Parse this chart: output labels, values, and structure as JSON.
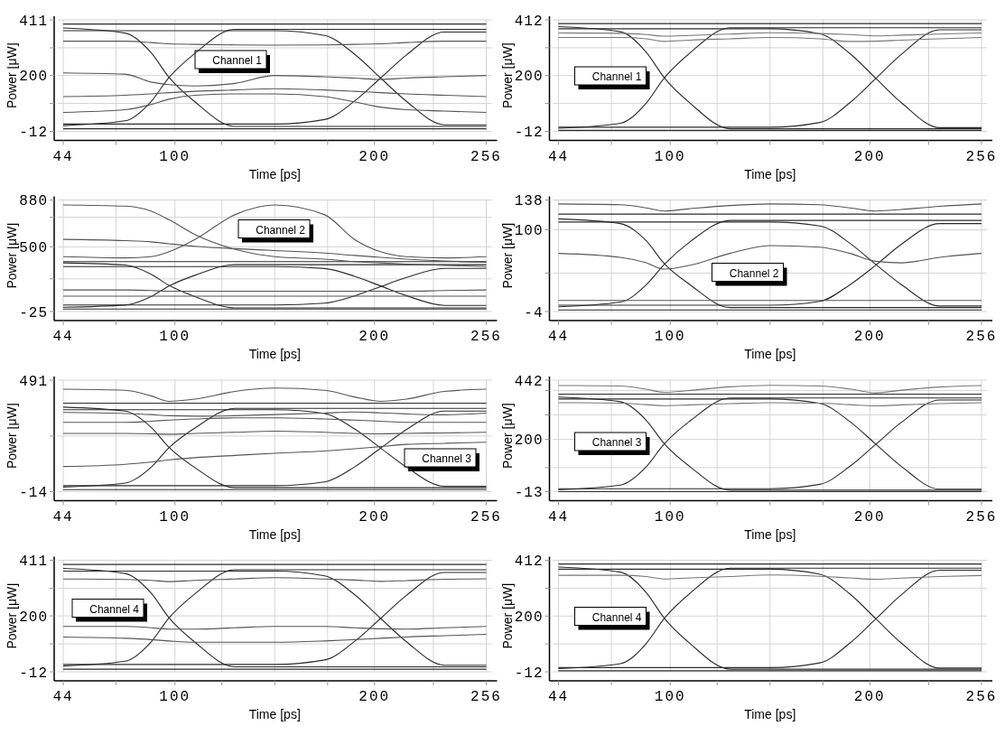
{
  "chart_data": [
    {
      "type": "line",
      "xlabel": "Time [ps]",
      "ylabel": "Power [μW]",
      "annotations": [
        "Channel 1"
      ],
      "grid": true,
      "x": [
        44,
        75,
        88,
        97,
        110,
        130,
        150,
        175,
        190,
        203,
        216,
        235,
        256
      ],
      "xlim": [
        44,
        256
      ],
      "xticks": [
        44,
        {
          "value": 70.5,
          "label": null
        },
        100,
        {
          "value": 123.5,
          "label": null
        },
        {
          "value": 150,
          "label": null
        },
        {
          "value": 176.5,
          "label": null
        },
        200,
        {
          "value": 229.5,
          "label": null
        },
        256
      ],
      "ylim": [
        -12,
        411
      ],
      "yticks": [
        -12,
        {
          "value": 94,
          "label": null
        },
        200,
        {
          "value": 305,
          "label": null
        },
        411
      ],
      "series": [
        {
          "color": "#2b2b2b",
          "values": [
            395,
            395,
            395,
            395,
            395,
            395,
            395,
            395,
            395,
            395,
            395,
            395,
            395
          ]
        },
        {
          "color": "#2b2b2b",
          "values": [
            -2,
            -2,
            -2,
            -2,
            -2,
            -2,
            -2,
            -2,
            -2,
            -2,
            -2,
            -2,
            -2
          ]
        },
        {
          "color": "#2b2b2b",
          "values": [
            380,
            361,
            287,
            193,
            100,
            7,
            7,
            7,
            7,
            7,
            7,
            7,
            7
          ]
        },
        {
          "color": "#2b2b2b",
          "values": [
            10,
            28,
            101,
            192,
            284,
            375,
            375,
            375,
            375,
            375,
            375,
            375,
            375
          ]
        },
        {
          "color": "#2b2b2b",
          "values": [
            370,
            370,
            370,
            370,
            370,
            370,
            370,
            352,
            281,
            191,
            102,
            13,
            13
          ]
        },
        {
          "color": "#2b2b2b",
          "values": [
            16,
            16,
            16,
            16,
            16,
            16,
            16,
            33,
            103,
            190,
            278,
            365,
            365
          ]
        },
        {
          "color": "#555555",
          "values": [
            330,
            330,
            325,
            320,
            318,
            316,
            315,
            316,
            318,
            320,
            325,
            330,
            330
          ]
        },
        {
          "color": "#555555",
          "values": [
            120,
            125,
            130,
            135,
            140,
            145,
            150,
            145,
            140,
            135,
            130,
            125,
            120
          ]
        },
        {
          "color": "#555555",
          "values": [
            210,
            205,
            175,
            165,
            160,
            170,
            200,
            195,
            190,
            185,
            190,
            195,
            200
          ]
        },
        {
          "color": "#555555",
          "values": [
            60,
            70,
            90,
            110,
            125,
            130,
            130,
            120,
            100,
            80,
            70,
            65,
            60
          ]
        }
      ]
    },
    {
      "type": "line",
      "xlabel": "Time [ps]",
      "ylabel": "Power [μW]",
      "annotations": [
        "Channel 1"
      ],
      "grid": true,
      "x": [
        44,
        75,
        88,
        97,
        110,
        130,
        150,
        175,
        190,
        203,
        216,
        235,
        256
      ],
      "xlim": [
        44,
        256
      ],
      "xticks": [
        44,
        {
          "value": 70.5,
          "label": null
        },
        100,
        {
          "value": 123.5,
          "label": null
        },
        {
          "value": 150,
          "label": null
        },
        {
          "value": 176.5,
          "label": null
        },
        200,
        {
          "value": 229.5,
          "label": null
        },
        256
      ],
      "ylim": [
        -12,
        412
      ],
      "yticks": [
        -12,
        {
          "value": 94,
          "label": null
        },
        200,
        {
          "value": 306,
          "label": null
        },
        412
      ],
      "series": [
        {
          "color": "#2b2b2b",
          "values": [
            398,
            398,
            398,
            398,
            398,
            398,
            398,
            398,
            398,
            398,
            398,
            398,
            398
          ]
        },
        {
          "color": "#2b2b2b",
          "values": [
            -8,
            -8,
            -8,
            -8,
            -8,
            -8,
            -8,
            -8,
            -8,
            -8,
            -8,
            -8,
            -8
          ]
        },
        {
          "color": "#2b2b2b",
          "values": [
            386,
            367,
            289,
            192,
            95,
            -2,
            -2,
            -2,
            -2,
            -2,
            -2,
            -2,
            -2
          ]
        },
        {
          "color": "#2b2b2b",
          "values": [
            0,
            19,
            96,
            191,
            287,
            382,
            382,
            382,
            382,
            382,
            382,
            382,
            382
          ]
        },
        {
          "color": "#2b2b2b",
          "values": [
            378,
            378,
            378,
            378,
            378,
            378,
            378,
            359,
            284,
            190,
            96,
            2,
            2
          ]
        },
        {
          "color": "#2b2b2b",
          "values": [
            4,
            4,
            4,
            4,
            4,
            4,
            4,
            22,
            97,
            189,
            282,
            374,
            374
          ]
        },
        {
          "color": "#777777",
          "values": [
            345,
            345,
            340,
            330,
            335,
            340,
            345,
            340,
            330,
            331,
            335,
            340,
            345
          ]
        },
        {
          "color": "#777777",
          "values": [
            362,
            361,
            356,
            350,
            353,
            358,
            363,
            360,
            356,
            351,
            354,
            358,
            362
          ]
        }
      ]
    },
    {
      "type": "line",
      "xlabel": "Time [ps]",
      "ylabel": "Power [μW]",
      "annotations": [
        "Channel 2"
      ],
      "grid": true,
      "x": [
        44,
        75,
        88,
        97,
        110,
        130,
        150,
        175,
        190,
        203,
        216,
        235,
        256
      ],
      "xlim": [
        44,
        256
      ],
      "xticks": [
        44,
        {
          "value": 70.5,
          "label": null
        },
        100,
        {
          "value": 123.5,
          "label": null
        },
        {
          "value": 150,
          "label": null
        },
        {
          "value": 176.5,
          "label": null
        },
        200,
        {
          "value": 229.5,
          "label": null
        },
        256
      ],
      "ylim": [
        -25,
        880
      ],
      "yticks": [
        -25,
        {
          "value": 240,
          "label": null
        },
        500,
        {
          "value": 740,
          "label": null
        },
        880
      ],
      "series": [
        {
          "color": "#2b2b2b",
          "values": [
            380,
            380,
            380,
            380,
            380,
            380,
            380,
            380,
            380,
            380,
            380,
            380,
            380
          ]
        },
        {
          "color": "#2b2b2b",
          "values": [
            -5,
            -5,
            -5,
            -5,
            -5,
            -5,
            -5,
            -5,
            -5,
            -5,
            -5,
            -5,
            -5
          ]
        },
        {
          "color": "#2b2b2b",
          "values": [
            370,
            352,
            278,
            187,
            96,
            4,
            4,
            4,
            4,
            4,
            4,
            4,
            4
          ]
        },
        {
          "color": "#2b2b2b",
          "values": [
            10,
            27,
            96,
            182,
            269,
            355,
            355,
            355,
            355,
            355,
            355,
            355,
            355
          ]
        },
        {
          "color": "#2b2b2b",
          "values": [
            340,
            340,
            340,
            340,
            340,
            340,
            340,
            324,
            261,
            183,
            104,
            25,
            25
          ]
        },
        {
          "color": "#2b2b2b",
          "values": [
            28,
            28,
            28,
            28,
            28,
            28,
            28,
            43,
            102,
            177,
            251,
            325,
            325
          ]
        },
        {
          "color": "#555555",
          "values": [
            840,
            830,
            790,
            720,
            600,
            480,
            420,
            400,
            380,
            370,
            360,
            350,
            340
          ]
        },
        {
          "color": "#555555",
          "values": [
            420,
            410,
            420,
            460,
            560,
            760,
            840,
            760,
            560,
            460,
            420,
            410,
            420
          ]
        },
        {
          "color": "#555555",
          "values": [
            560,
            550,
            540,
            525,
            505,
            485,
            470,
            450,
            430,
            415,
            400,
            385,
            375
          ]
        },
        {
          "color": "#555555",
          "values": [
            150,
            150,
            145,
            140,
            140,
            140,
            140,
            140,
            140,
            140,
            140,
            145,
            150
          ]
        },
        {
          "color": "#555555",
          "values": [
            100,
            100,
            100,
            100,
            100,
            100,
            100,
            100,
            100,
            100,
            100,
            100,
            100
          ]
        }
      ]
    },
    {
      "type": "line",
      "xlabel": "Time [ps]",
      "ylabel": "Power [μW]",
      "annotations": [
        "Channel 2"
      ],
      "grid": true,
      "x": [
        44,
        75,
        88,
        97,
        110,
        130,
        150,
        175,
        190,
        203,
        216,
        235,
        256
      ],
      "xlim": [
        44,
        256
      ],
      "xticks": [
        44,
        {
          "value": 70.5,
          "label": null
        },
        100,
        {
          "value": 123.5,
          "label": null
        },
        {
          "value": 150,
          "label": null
        },
        {
          "value": 176.5,
          "label": null
        },
        200,
        {
          "value": 229.5,
          "label": null
        },
        256
      ],
      "ylim": [
        -4,
        138
      ],
      "yticks": [
        -4,
        {
          "value": 45,
          "label": null
        },
        100,
        138
      ],
      "series": [
        {
          "color": "#2b2b2b",
          "values": [
            120,
            120,
            120,
            120,
            120,
            120,
            120,
            120,
            120,
            120,
            120,
            120,
            120
          ]
        },
        {
          "color": "#2b2b2b",
          "values": [
            -2,
            -2,
            -2,
            -2,
            -2,
            -2,
            -2,
            -2,
            -2,
            -2,
            -2,
            -2,
            -2
          ]
        },
        {
          "color": "#2b2b2b",
          "values": [
            114,
            108,
            86,
            57,
            30,
            1,
            1,
            1,
            1,
            1,
            1,
            1,
            1
          ]
        },
        {
          "color": "#2b2b2b",
          "values": [
            2,
            8,
            30,
            56,
            85,
            112,
            112,
            112,
            112,
            112,
            112,
            112,
            112
          ]
        },
        {
          "color": "#2b2b2b",
          "values": [
            110,
            110,
            110,
            110,
            110,
            110,
            110,
            105,
            83,
            56,
            30,
            3,
            3
          ]
        },
        {
          "color": "#2b2b2b",
          "values": [
            4,
            4,
            4,
            4,
            4,
            4,
            4,
            9,
            30,
            55,
            82,
            108,
            108
          ]
        },
        {
          "color": "#555555",
          "values": [
            70,
            65,
            58,
            50,
            55,
            70,
            80,
            78,
            70,
            60,
            58,
            65,
            70
          ]
        },
        {
          "color": "#555555",
          "values": [
            10,
            10,
            10,
            10,
            10,
            10,
            10,
            10,
            10,
            10,
            10,
            10,
            10
          ]
        },
        {
          "color": "#555555",
          "values": [
            133,
            132,
            128,
            124,
            127,
            131,
            133,
            132,
            128,
            124,
            126,
            130,
            133
          ]
        }
      ]
    },
    {
      "type": "line",
      "xlabel": "Time [ps]",
      "ylabel": "Power [μW]",
      "annotations": [
        "Channel 3"
      ],
      "grid": true,
      "x": [
        44,
        75,
        88,
        97,
        110,
        130,
        150,
        175,
        190,
        203,
        216,
        235,
        256
      ],
      "xlim": [
        44,
        256
      ],
      "xticks": [
        44,
        {
          "value": 70.5,
          "label": null
        },
        100,
        {
          "value": 123.5,
          "label": null
        },
        {
          "value": 150,
          "label": null
        },
        {
          "value": 176.5,
          "label": null
        },
        200,
        {
          "value": 229.5,
          "label": null
        },
        256
      ],
      "ylim": [
        -14,
        491
      ],
      "yticks": [
        -14,
        {
          "value": 238,
          "label": null
        },
        491
      ],
      "series": [
        {
          "color": "#2b2b2b",
          "values": [
            387,
            387,
            387,
            387,
            387,
            387,
            387,
            387,
            387,
            387,
            387,
            387,
            387
          ]
        },
        {
          "color": "#2b2b2b",
          "values": [
            -5,
            -5,
            -5,
            -5,
            -5,
            -5,
            -5,
            -5,
            -5,
            -5,
            -5,
            -5,
            -5
          ]
        },
        {
          "color": "#2b2b2b",
          "values": [
            369,
            351,
            278,
            187,
            95,
            4,
            4,
            4,
            4,
            4,
            4,
            4,
            4
          ]
        },
        {
          "color": "#2b2b2b",
          "values": [
            7,
            25,
            96,
            185,
            274,
            363,
            363,
            363,
            363,
            363,
            363,
            363,
            363
          ]
        },
        {
          "color": "#2b2b2b",
          "values": [
            357,
            357,
            357,
            357,
            357,
            357,
            357,
            340,
            270,
            184,
            97,
            10,
            10
          ]
        },
        {
          "color": "#2b2b2b",
          "values": [
            13,
            13,
            13,
            13,
            13,
            13,
            13,
            30,
            98,
            182,
            267,
            351,
            351
          ]
        },
        {
          "color": "#555555",
          "values": [
            450,
            445,
            420,
            395,
            405,
            440,
            455,
            445,
            415,
            395,
            405,
            440,
            450
          ]
        },
        {
          "color": "#555555",
          "values": [
            300,
            300,
            305,
            310,
            315,
            320,
            320,
            315,
            310,
            305,
            300,
            300,
            300
          ]
        },
        {
          "color": "#555555",
          "values": [
            250,
            250,
            248,
            246,
            250,
            255,
            260,
            255,
            250,
            248,
            250,
            252,
            255
          ]
        },
        {
          "color": "#555555",
          "values": [
            100,
            110,
            120,
            130,
            140,
            150,
            160,
            170,
            180,
            190,
            200,
            205,
            210
          ]
        },
        {
          "color": "#555555",
          "values": [
            345,
            340,
            335,
            330,
            328,
            330,
            335,
            342,
            347,
            343,
            338,
            334,
            342
          ]
        }
      ]
    },
    {
      "type": "line",
      "xlabel": "Time [ps]",
      "ylabel": "Power [μW]",
      "annotations": [
        "Channel 3"
      ],
      "grid": true,
      "x": [
        44,
        75,
        88,
        97,
        110,
        130,
        150,
        175,
        190,
        203,
        216,
        235,
        256
      ],
      "xlim": [
        44,
        256
      ],
      "xticks": [
        44,
        {
          "value": 70.5,
          "label": null
        },
        100,
        {
          "value": 123.5,
          "label": null
        },
        {
          "value": 150,
          "label": null
        },
        {
          "value": 176.5,
          "label": null
        },
        200,
        {
          "value": 229.5,
          "label": null
        },
        256
      ],
      "ylim": [
        -13,
        442
      ],
      "yticks": [
        -13,
        {
          "value": 85,
          "label": null
        },
        200,
        {
          "value": 300,
          "label": null
        },
        {
          "value": 400,
          "label": null
        },
        442
      ],
      "series": [
        {
          "color": "#2b2b2b",
          "values": [
            385,
            385,
            385,
            385,
            385,
            385,
            385,
            385,
            385,
            385,
            385,
            385,
            385
          ]
        },
        {
          "color": "#2b2b2b",
          "values": [
            -13,
            -13,
            -13,
            -13,
            -13,
            -13,
            -13,
            -13,
            -13,
            -13,
            -13,
            -13,
            -13
          ]
        },
        {
          "color": "#2b2b2b",
          "values": [
            373,
            354,
            278,
            183,
            88,
            -7,
            -7,
            -7,
            -7,
            -7,
            -7,
            -7,
            -7
          ]
        },
        {
          "color": "#2b2b2b",
          "values": [
            -5,
            14,
            89,
            182,
            276,
            369,
            369,
            369,
            369,
            369,
            369,
            369,
            369
          ]
        },
        {
          "color": "#2b2b2b",
          "values": [
            365,
            365,
            365,
            365,
            365,
            365,
            365,
            347,
            273,
            181,
            89,
            -3,
            -3
          ]
        },
        {
          "color": "#2b2b2b",
          "values": [
            -1,
            -1,
            -1,
            -1,
            -1,
            -1,
            -1,
            17,
            90,
            180,
            271,
            361,
            361
          ]
        },
        {
          "color": "#777777",
          "values": [
            420,
            418,
            405,
            392,
            400,
            415,
            421,
            418,
            406,
            390,
            401,
            414,
            420
          ]
        },
        {
          "color": "#777777",
          "values": [
            350,
            348,
            342,
            338,
            341,
            346,
            350,
            348,
            342,
            337,
            341,
            346,
            350
          ]
        }
      ]
    },
    {
      "type": "line",
      "xlabel": "Time [ps]",
      "ylabel": "Power [μW]",
      "annotations": [
        "Channel 4"
      ],
      "grid": true,
      "x": [
        44,
        75,
        88,
        97,
        110,
        130,
        150,
        175,
        190,
        203,
        216,
        235,
        256
      ],
      "xlim": [
        44,
        256
      ],
      "xticks": [
        44,
        {
          "value": 70.5,
          "label": null
        },
        100,
        {
          "value": 123.5,
          "label": null
        },
        {
          "value": 150,
          "label": null
        },
        {
          "value": 176.5,
          "label": null
        },
        200,
        {
          "value": 229.5,
          "label": null
        },
        256
      ],
      "ylim": [
        -12,
        411
      ],
      "yticks": [
        -12,
        {
          "value": 94,
          "label": null
        },
        200,
        {
          "value": 305,
          "label": null
        },
        411
      ],
      "series": [
        {
          "color": "#2b2b2b",
          "values": [
            395,
            395,
            395,
            395,
            395,
            395,
            395,
            395,
            395,
            395,
            395,
            395,
            395
          ]
        },
        {
          "color": "#2b2b2b",
          "values": [
            -2,
            -2,
            -2,
            -2,
            -2,
            -2,
            -2,
            -2,
            -2,
            -2,
            -2,
            -2,
            -2
          ]
        },
        {
          "color": "#2b2b2b",
          "values": [
            380,
            361,
            287,
            193,
            100,
            7,
            7,
            7,
            7,
            7,
            7,
            7,
            7
          ]
        },
        {
          "color": "#2b2b2b",
          "values": [
            10,
            28,
            101,
            192,
            284,
            375,
            375,
            375,
            375,
            375,
            375,
            375,
            375
          ]
        },
        {
          "color": "#2b2b2b",
          "values": [
            370,
            370,
            370,
            370,
            370,
            370,
            370,
            352,
            281,
            191,
            102,
            13,
            13
          ]
        },
        {
          "color": "#2b2b2b",
          "values": [
            16,
            16,
            16,
            16,
            16,
            16,
            16,
            33,
            103,
            190,
            278,
            365,
            365
          ]
        },
        {
          "color": "#555555",
          "values": [
            160,
            160,
            155,
            150,
            150,
            155,
            160,
            160,
            155,
            151,
            150,
            155,
            160
          ]
        },
        {
          "color": "#555555",
          "values": [
            340,
            338,
            335,
            330,
            335,
            340,
            345,
            340,
            336,
            331,
            334,
            339,
            341
          ]
        },
        {
          "color": "#555555",
          "values": [
            120,
            115,
            110,
            105,
            100,
            100,
            100,
            105,
            110,
            115,
            120,
            125,
            130
          ]
        }
      ]
    },
    {
      "type": "line",
      "xlabel": "Time [ps]",
      "ylabel": "Power [μW]",
      "annotations": [
        "Channel 4"
      ],
      "grid": true,
      "x": [
        44,
        75,
        88,
        97,
        110,
        130,
        150,
        175,
        190,
        203,
        216,
        235,
        256
      ],
      "xlim": [
        44,
        256
      ],
      "xticks": [
        44,
        {
          "value": 70.5,
          "label": null
        },
        100,
        {
          "value": 123.5,
          "label": null
        },
        {
          "value": 150,
          "label": null
        },
        {
          "value": 176.5,
          "label": null
        },
        200,
        {
          "value": 229.5,
          "label": null
        },
        256
      ],
      "ylim": [
        -12,
        412
      ],
      "yticks": [
        -12,
        {
          "value": 94,
          "label": null
        },
        200,
        {
          "value": 306,
          "label": null
        },
        412
      ],
      "series": [
        {
          "color": "#2b2b2b",
          "values": [
            398,
            398,
            398,
            398,
            398,
            398,
            398,
            398,
            398,
            398,
            398,
            398,
            398
          ]
        },
        {
          "color": "#2b2b2b",
          "values": [
            -8,
            -8,
            -8,
            -8,
            -8,
            -8,
            -8,
            -8,
            -8,
            -8,
            -8,
            -8,
            -8
          ]
        },
        {
          "color": "#2b2b2b",
          "values": [
            386,
            367,
            289,
            192,
            95,
            -2,
            -2,
            -2,
            -2,
            -2,
            -2,
            -2,
            -2
          ]
        },
        {
          "color": "#2b2b2b",
          "values": [
            0,
            19,
            96,
            191,
            287,
            382,
            382,
            382,
            382,
            382,
            382,
            382,
            382
          ]
        },
        {
          "color": "#2b2b2b",
          "values": [
            378,
            378,
            378,
            378,
            378,
            378,
            378,
            359,
            284,
            190,
            96,
            2,
            2
          ]
        },
        {
          "color": "#2b2b2b",
          "values": [
            4,
            4,
            4,
            4,
            4,
            4,
            4,
            22,
            97,
            189,
            282,
            374,
            374
          ]
        },
        {
          "color": "#777777",
          "values": [
            355,
            355,
            350,
            341,
            345,
            350,
            356,
            351,
            345,
            340,
            344,
            350,
            354
          ]
        }
      ]
    }
  ]
}
